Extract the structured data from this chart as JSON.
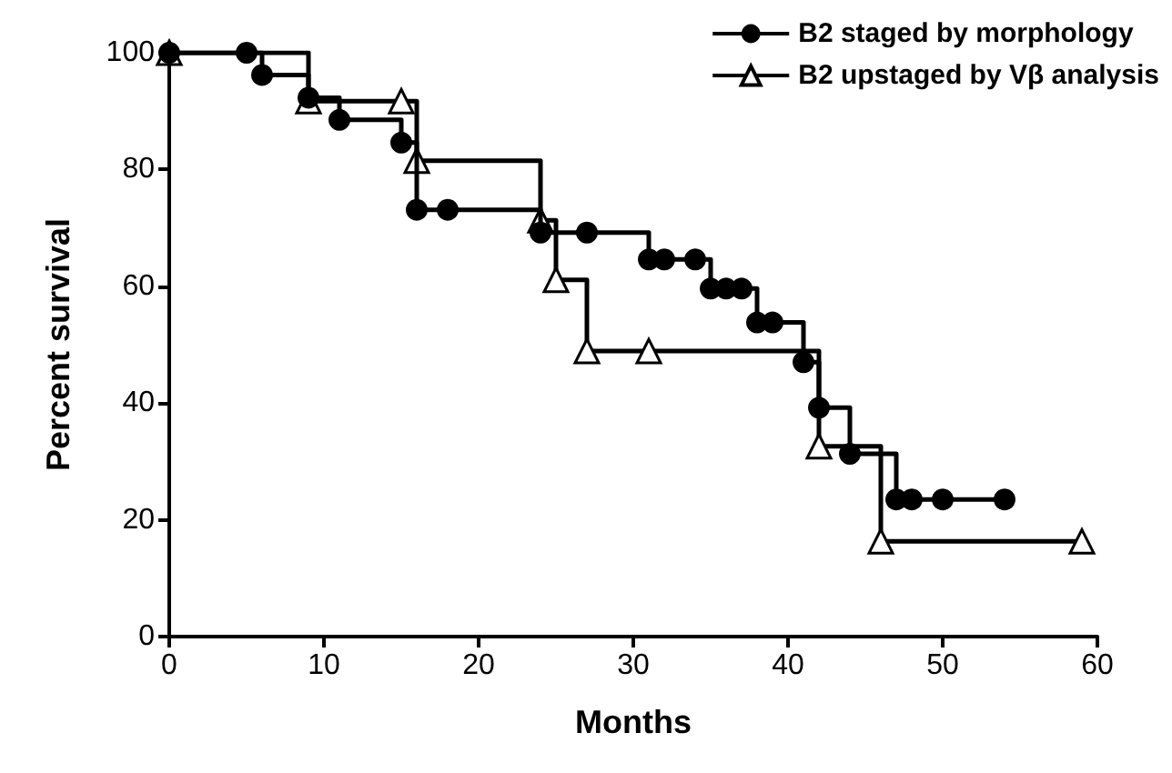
{
  "chart_data": {
    "type": "step",
    "xlabel": "Months",
    "ylabel": "Percent survival",
    "xlim": [
      0,
      60
    ],
    "xticks": [
      0,
      10,
      20,
      30,
      40,
      50,
      60
    ],
    "ylim": [
      0,
      100
    ],
    "yticks": [
      0,
      20,
      40,
      60,
      80,
      100
    ],
    "grid": false,
    "legend": "top right",
    "line_style": "solid",
    "series": [
      {
        "name": "B2 staged by morphology",
        "color": "#000000",
        "marker": "circle",
        "x": [
          0,
          5,
          6,
          9,
          11,
          15,
          16,
          18,
          24,
          27,
          31,
          32,
          34,
          35,
          36,
          37,
          38,
          39,
          41,
          42,
          44,
          47,
          48,
          50,
          54
        ],
        "values": [
          100,
          100,
          96.2,
          92.3,
          88.5,
          84.6,
          73.1,
          73.1,
          69.2,
          69.2,
          64.6,
          64.6,
          64.6,
          59.6,
          59.6,
          59.6,
          53.8,
          53.8,
          47,
          39.2,
          31.3,
          23.5,
          23.5,
          23.5,
          23.5
        ]
      },
      {
        "name": "B2 upstaged by Vβ analysis",
        "color": "#000000",
        "marker": "triangle",
        "x": [
          0,
          9,
          15,
          16,
          24,
          25,
          27,
          31,
          42,
          46,
          59
        ],
        "values": [
          100,
          91.7,
          91.7,
          81.5,
          71.3,
          61.1,
          48.9,
          48.9,
          32.6,
          16.3,
          16.3
        ]
      }
    ]
  }
}
